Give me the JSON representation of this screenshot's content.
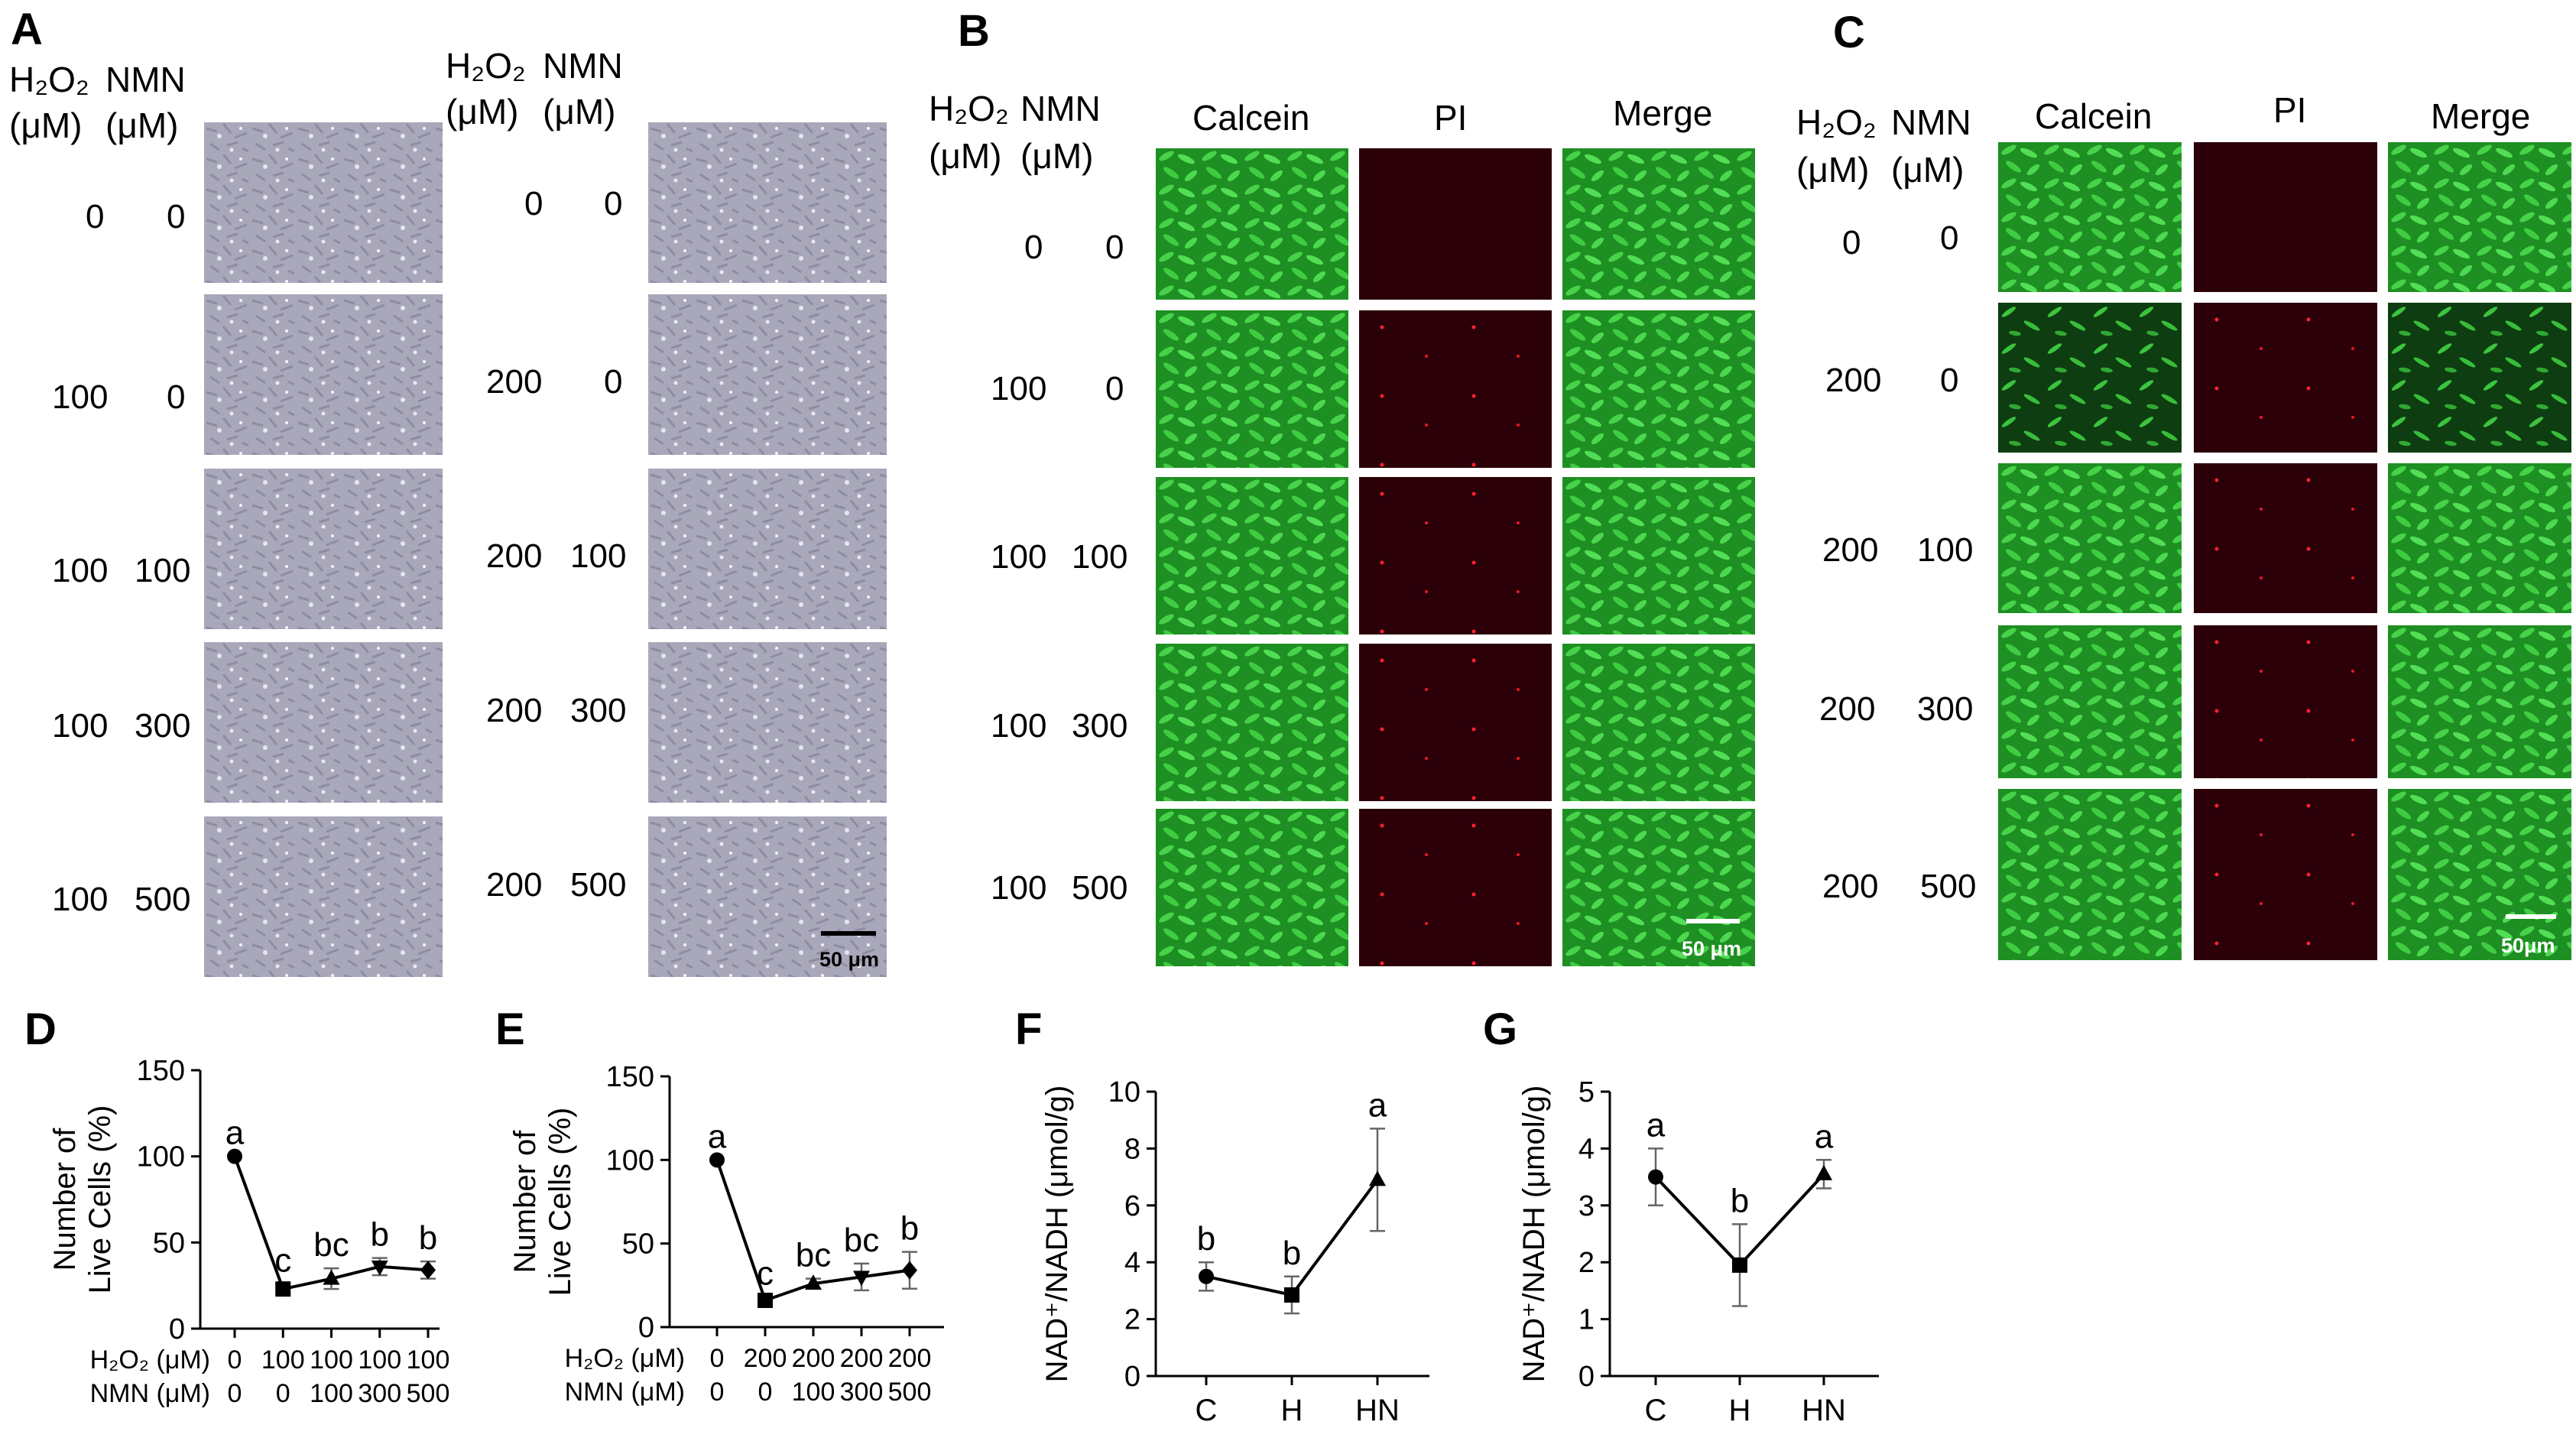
{
  "panel_letters": {
    "A": "A",
    "B": "B",
    "C": "C",
    "D": "D",
    "E": "E",
    "F": "F",
    "G": "G"
  },
  "header_h2o2": "H₂O₂",
  "header_nmn": "NMN",
  "header_unit": "(μM)",
  "col_calcein": "Calcein",
  "col_pi": "PI",
  "col_merge": "Merge",
  "scale_a": "50 μm",
  "scale_b": "50 μm",
  "scale_c": "50μm",
  "rows_a_left": [
    {
      "h": "0",
      "n": "0"
    },
    {
      "h": "100",
      "n": "0"
    },
    {
      "h": "100",
      "n": "100"
    },
    {
      "h": "100",
      "n": "300"
    },
    {
      "h": "100",
      "n": "500"
    }
  ],
  "rows_a_right": [
    {
      "h": "0",
      "n": "0"
    },
    {
      "h": "200",
      "n": "0"
    },
    {
      "h": "200",
      "n": "100"
    },
    {
      "h": "200",
      "n": "300"
    },
    {
      "h": "200",
      "n": "500"
    }
  ],
  "rows_b": [
    {
      "h": "0",
      "n": "0"
    },
    {
      "h": "100",
      "n": "0"
    },
    {
      "h": "100",
      "n": "100"
    },
    {
      "h": "100",
      "n": "300"
    },
    {
      "h": "100",
      "n": "500"
    }
  ],
  "rows_c": [
    {
      "h": "0",
      "n": "0"
    },
    {
      "h": "200",
      "n": "0"
    },
    {
      "h": "200",
      "n": "100"
    },
    {
      "h": "200",
      "n": "300"
    },
    {
      "h": "200",
      "n": "500"
    }
  ],
  "colors": {
    "calcein": "#2fb52f",
    "pi": "#2a0008",
    "bright": "#b9b8c8"
  },
  "chart_data": [
    {
      "id": "D",
      "type": "line",
      "ylabel": "Number of Live Cells (%)",
      "ylim": [
        0,
        150
      ],
      "yticks": [
        "0",
        "50",
        "100",
        "150"
      ],
      "row1_label": "H₂O₂ (μM)",
      "row2_label": "NMN (μM)",
      "row1": [
        "0",
        "100",
        "100",
        "100",
        "100"
      ],
      "row2": [
        "0",
        "0",
        "100",
        "300",
        "500"
      ],
      "values": [
        100,
        23,
        29,
        36,
        34
      ],
      "errors": [
        0,
        3,
        6,
        5,
        5
      ],
      "letters": [
        "a",
        "c",
        "bc",
        "b",
        "b"
      ],
      "markers": [
        "circle",
        "square",
        "triangle",
        "triangle-down",
        "diamond"
      ]
    },
    {
      "id": "E",
      "type": "line",
      "ylabel": "Number of Live Cells (%)",
      "ylim": [
        0,
        150
      ],
      "yticks": [
        "0",
        "50",
        "100",
        "150"
      ],
      "row1_label": "H₂O₂ (μM)",
      "row2_label": "NMN (μM)",
      "row1": [
        "0",
        "200",
        "200",
        "200",
        "200"
      ],
      "row2": [
        "0",
        "0",
        "100",
        "300",
        "500"
      ],
      "values": [
        100,
        16,
        26,
        30,
        34
      ],
      "errors": [
        0,
        2,
        3,
        8,
        11
      ],
      "letters": [
        "a",
        "c",
        "bc",
        "bc",
        "b"
      ],
      "markers": [
        "circle",
        "square",
        "triangle",
        "triangle-down",
        "diamond"
      ]
    },
    {
      "id": "F",
      "type": "line",
      "ylabel": "NAD⁺/NADH (μmol/g)",
      "ylim": [
        0,
        10
      ],
      "yticks": [
        "0",
        "2",
        "4",
        "6",
        "8",
        "10"
      ],
      "categories": [
        "C",
        "H",
        "HN"
      ],
      "values": [
        3.5,
        2.85,
        6.9
      ],
      "errors": [
        0.5,
        0.65,
        1.8
      ],
      "letters": [
        "b",
        "b",
        "a"
      ],
      "markers": [
        "circle",
        "square",
        "triangle"
      ]
    },
    {
      "id": "G",
      "type": "line",
      "ylabel": "NAD⁺/NADH (μmol/g)",
      "ylim": [
        0,
        5
      ],
      "yticks": [
        "0",
        "1",
        "2",
        "3",
        "4",
        "5"
      ],
      "categories": [
        "C",
        "H",
        "HN"
      ],
      "values": [
        3.5,
        1.95,
        3.55
      ],
      "errors": [
        0.5,
        0.72,
        0.25
      ],
      "letters": [
        "a",
        "b",
        "a"
      ],
      "markers": [
        "circle",
        "square",
        "triangle"
      ]
    }
  ]
}
